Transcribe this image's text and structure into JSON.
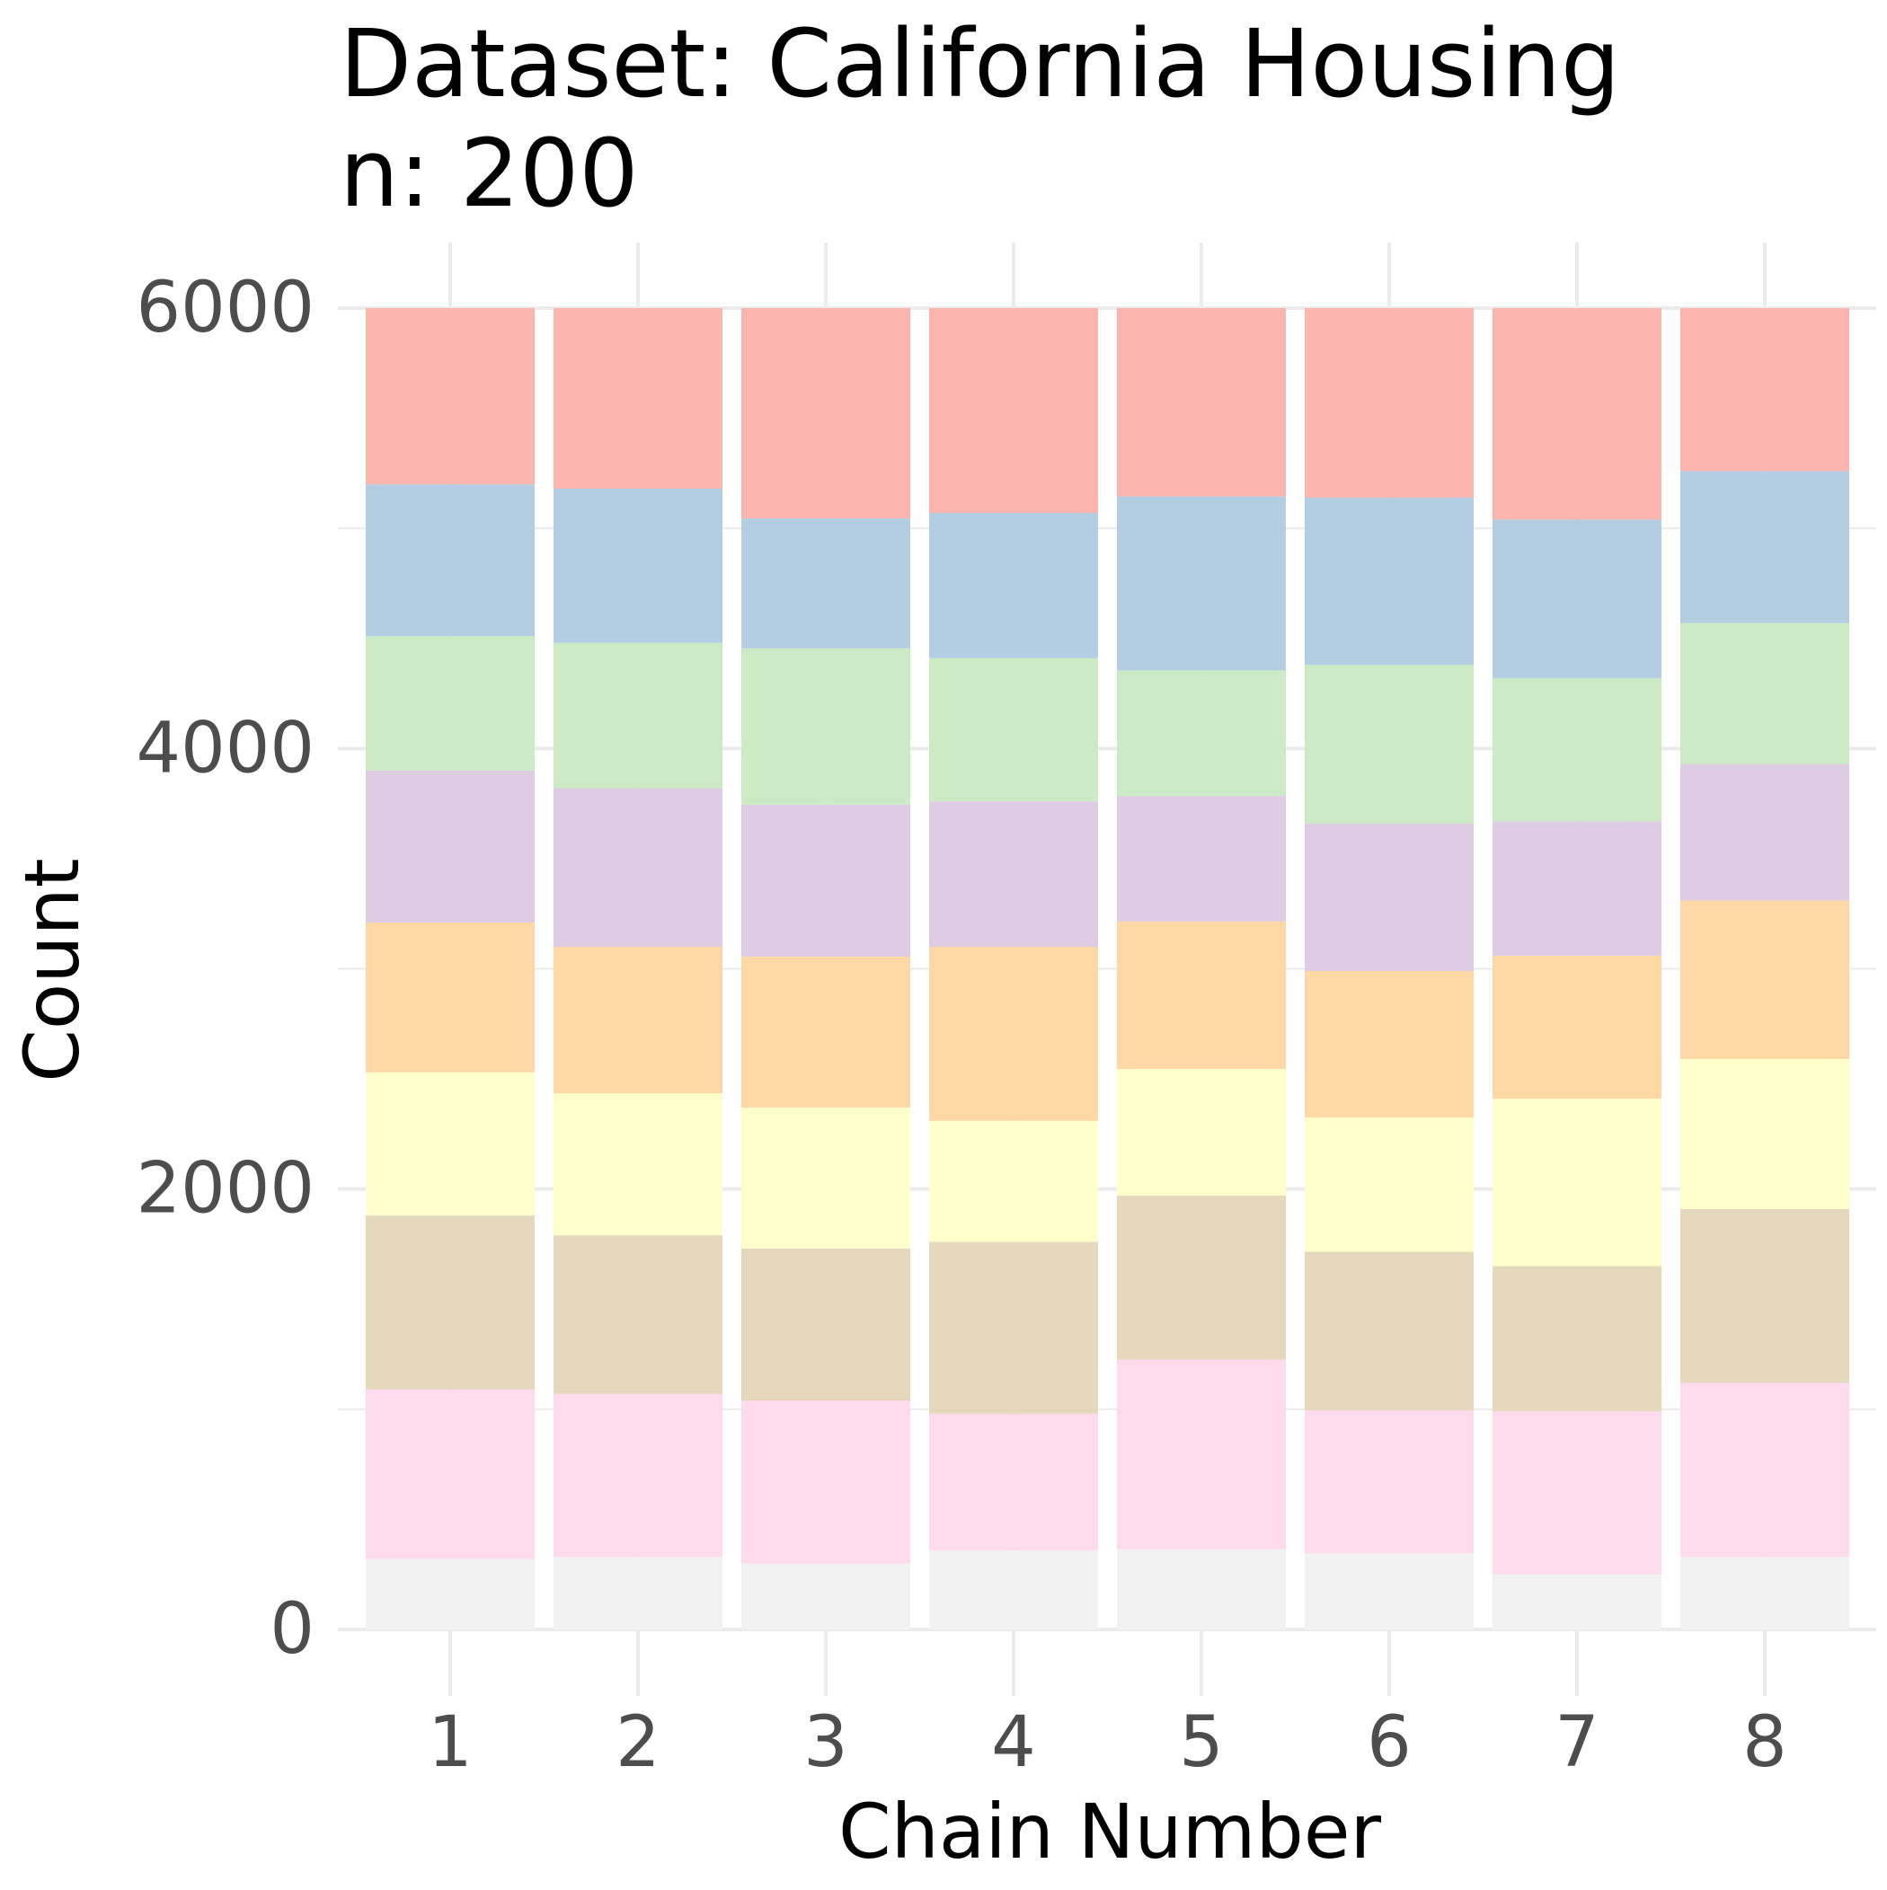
{
  "chart_data": {
    "type": "bar",
    "stacked": true,
    "title": "Dataset: California Housing",
    "subtitle": "n: 200",
    "xlabel": "Chain Number",
    "ylabel": "Count",
    "categories": [
      "1",
      "2",
      "3",
      "4",
      "5",
      "6",
      "7",
      "8"
    ],
    "ylim": [
      0,
      6000
    ],
    "yticks": [
      0,
      2000,
      4000,
      6000
    ],
    "grid": true,
    "legend": "none",
    "series": [
      {
        "color": "#F2F2F2",
        "values": [
          320,
          330,
          300,
          360,
          365,
          345,
          250,
          330
        ]
      },
      {
        "color": "#FDDAEC",
        "values": [
          770,
          740,
          740,
          620,
          860,
          650,
          740,
          790
        ]
      },
      {
        "color": "#E5D8BD",
        "values": [
          790,
          720,
          690,
          780,
          745,
          720,
          660,
          790
        ]
      },
      {
        "color": "#FFFFCC",
        "values": [
          650,
          645,
          640,
          550,
          575,
          610,
          760,
          680
        ]
      },
      {
        "color": "#FED9A6",
        "values": [
          680,
          665,
          685,
          790,
          670,
          665,
          650,
          720
        ]
      },
      {
        "color": "#DECBE4",
        "values": [
          690,
          720,
          690,
          660,
          570,
          670,
          610,
          620
        ]
      },
      {
        "color": "#CCEBC5",
        "values": [
          610,
          660,
          710,
          650,
          570,
          720,
          650,
          640
        ]
      },
      {
        "color": "#B3CDE3",
        "values": [
          690,
          700,
          590,
          660,
          790,
          760,
          720,
          690
        ]
      },
      {
        "color": "#FBB4AE",
        "values": [
          800,
          820,
          955,
          930,
          855,
          860,
          960,
          740
        ]
      }
    ]
  }
}
